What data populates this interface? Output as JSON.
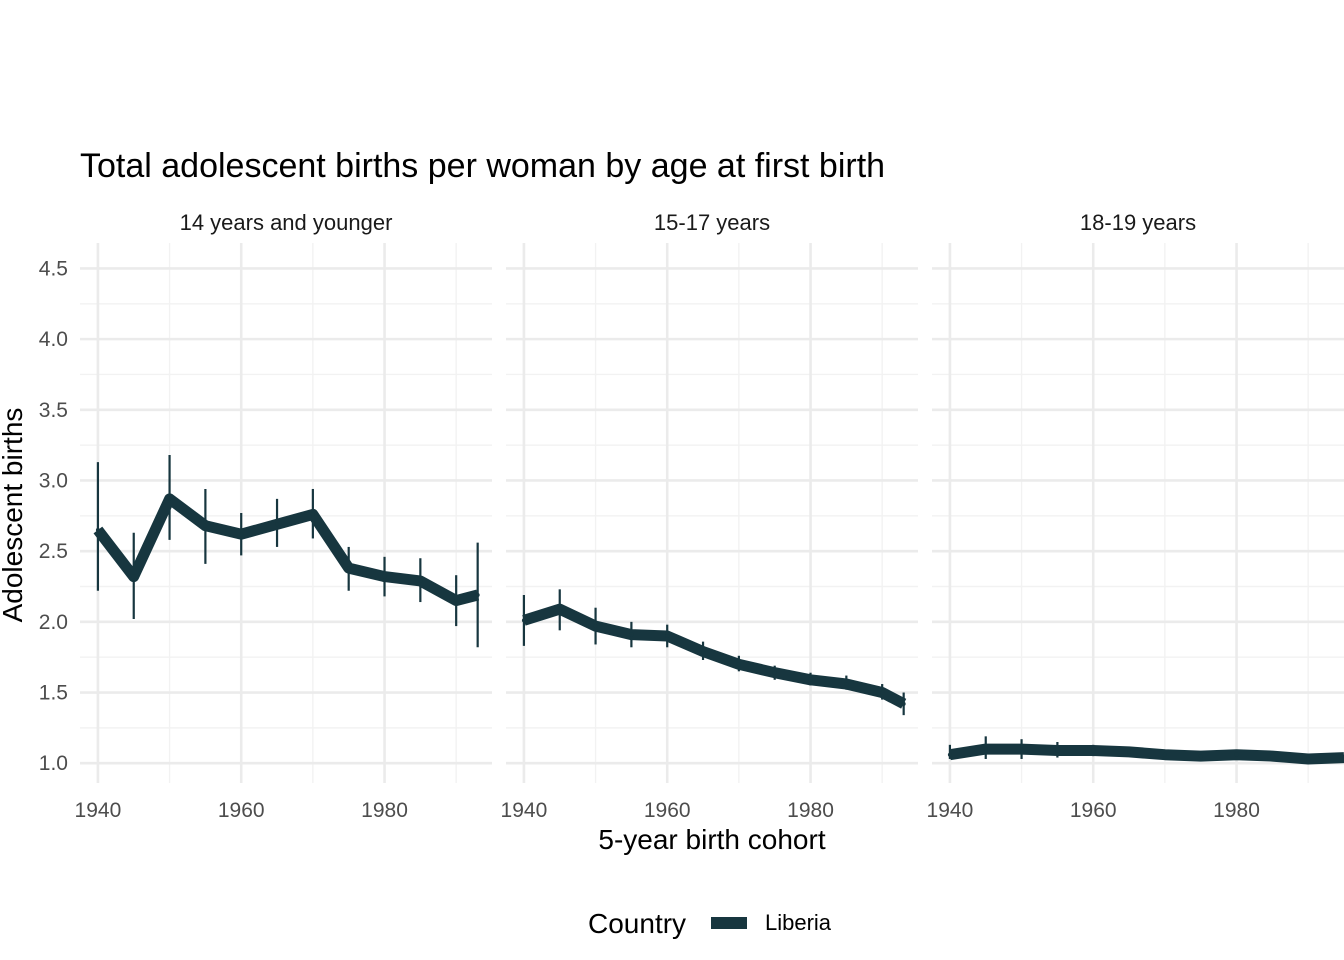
{
  "chart_data": {
    "type": "line",
    "title": "Total adolescent births per woman by age at first birth",
    "xlabel": "5-year birth cohort",
    "ylabel": "Adolescent births",
    "ylim": [
      0.86,
      4.68
    ],
    "y_ticks": [
      "1.0",
      "1.5",
      "2.0",
      "2.5",
      "3.0",
      "3.5",
      "4.0",
      "4.5"
    ],
    "y_tick_values": [
      1.0,
      1.5,
      2.0,
      2.5,
      3.0,
      3.5,
      4.0,
      4.5
    ],
    "x_ticks": [
      "1940",
      "1960",
      "1980"
    ],
    "x_tick_values": [
      1940,
      1960,
      1980
    ],
    "xlim": [
      1937.5,
      1995
    ],
    "grid": true,
    "legend": {
      "title": "Country",
      "position": "bottom",
      "entries": [
        {
          "label": "Liberia",
          "color": "#17363f"
        }
      ]
    },
    "series_color": "#17363f",
    "panels": [
      {
        "label": "14 years and younger",
        "x": [
          1940,
          1945,
          1950,
          1955,
          1960,
          1965,
          1970,
          1975,
          1980,
          1985,
          1990,
          1993
        ],
        "values": [
          2.65,
          2.32,
          2.87,
          2.68,
          2.62,
          2.69,
          2.76,
          2.38,
          2.32,
          2.29,
          2.15,
          2.19
        ],
        "lower": [
          2.22,
          2.02,
          2.58,
          2.41,
          2.47,
          2.53,
          2.59,
          2.22,
          2.18,
          2.14,
          1.97,
          1.82
        ],
        "upper": [
          3.13,
          2.63,
          3.18,
          2.94,
          2.77,
          2.87,
          2.94,
          2.53,
          2.46,
          2.45,
          2.33,
          2.56
        ]
      },
      {
        "label": "15-17 years",
        "x": [
          1940,
          1945,
          1950,
          1955,
          1960,
          1965,
          1970,
          1975,
          1980,
          1985,
          1990,
          1993
        ],
        "values": [
          2.01,
          2.09,
          1.97,
          1.91,
          1.9,
          1.79,
          1.7,
          1.64,
          1.59,
          1.56,
          1.5,
          1.42
        ],
        "lower": [
          1.83,
          1.94,
          1.84,
          1.82,
          1.82,
          1.73,
          1.65,
          1.59,
          1.55,
          1.52,
          1.45,
          1.34
        ],
        "upper": [
          2.19,
          2.23,
          2.1,
          2.0,
          1.98,
          1.86,
          1.76,
          1.69,
          1.64,
          1.62,
          1.56,
          1.5
        ]
      },
      {
        "label": "18-19 years",
        "x": [
          1940,
          1945,
          1950,
          1955,
          1960,
          1965,
          1970,
          1975,
          1980,
          1985,
          1990,
          1995
        ],
        "values": [
          1.06,
          1.1,
          1.1,
          1.09,
          1.09,
          1.08,
          1.06,
          1.05,
          1.06,
          1.05,
          1.03,
          1.04
        ],
        "lower": [
          1.03,
          1.03,
          1.03,
          1.04,
          1.05,
          1.05,
          1.04,
          1.03,
          1.04,
          1.03,
          1.01,
          1.02
        ],
        "upper": [
          1.13,
          1.19,
          1.17,
          1.15,
          1.13,
          1.11,
          1.08,
          1.07,
          1.08,
          1.07,
          1.05,
          1.06
        ]
      }
    ]
  }
}
